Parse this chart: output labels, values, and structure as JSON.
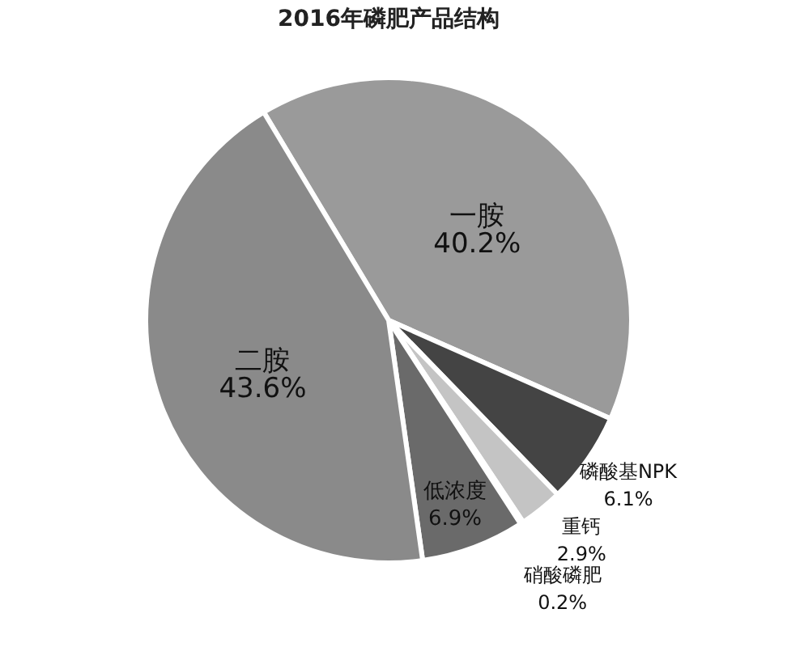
{
  "chart_data": {
    "type": "pie",
    "title": "2016年磷肥产品结构",
    "categories": [
      "一胺",
      "磷酸基NPK",
      "重钙",
      "硝酸磷肥",
      "低浓度",
      "二胺"
    ],
    "values": [
      40.2,
      6.1,
      2.9,
      0.2,
      6.9,
      43.6
    ],
    "value_labels": [
      "40.2%",
      "6.1%",
      "2.9%",
      "0.2%",
      "6.9%",
      "43.6%"
    ],
    "colors": [
      "#9a9a9a",
      "#444444",
      "#c4c4c4",
      "#dcdcdc",
      "#6a6a6a",
      "#8a8a8a"
    ],
    "legend": false
  }
}
